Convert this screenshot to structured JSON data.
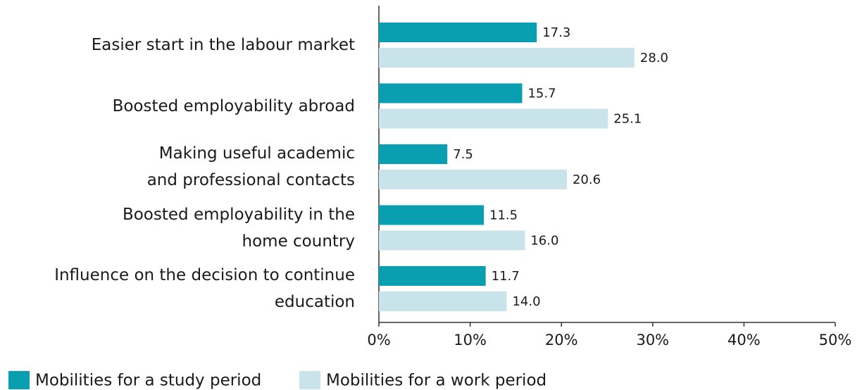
{
  "chart_data": {
    "type": "bar",
    "orientation": "horizontal",
    "categories": [
      "Easier start in the labour market",
      "Boosted employability abroad",
      "Making useful academic\nand professional contacts",
      "Boosted employability in the\nhome country",
      "Influence on the decision to continue\neducation"
    ],
    "series": [
      {
        "name": "Mobilities for a study period",
        "color": "#0a9fb0",
        "values": [
          17.3,
          15.7,
          7.5,
          11.5,
          11.7
        ],
        "value_labels": [
          "17.3",
          "15.7",
          "7.5",
          "11.5",
          "11.7"
        ]
      },
      {
        "name": "Mobilities for a work period",
        "color": "#c8e3ea",
        "values": [
          28.0,
          25.1,
          20.6,
          16.0,
          14.0
        ],
        "value_labels": [
          "28.0",
          "25.1",
          "20.6",
          "16.0",
          "14.0"
        ]
      }
    ],
    "xlim": [
      0,
      50
    ],
    "xticks": [
      {
        "value": 0,
        "label": "0%"
      },
      {
        "value": 10,
        "label": "10%"
      },
      {
        "value": 20,
        "label": "20%"
      },
      {
        "value": 30,
        "label": "30%"
      },
      {
        "value": 40,
        "label": "40%"
      },
      {
        "value": 50,
        "label": "50%"
      }
    ],
    "grid": false,
    "legend": "bottom-left"
  }
}
